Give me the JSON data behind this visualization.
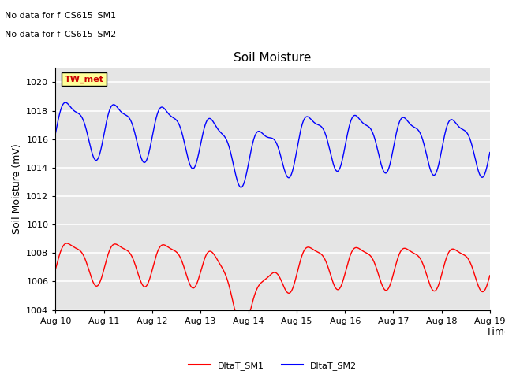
{
  "title": "Soil Moisture",
  "ylabel": "Soil Moisture (mV)",
  "xlabel": "Time",
  "annotation_lines": [
    "No data for f_CS615_SM1",
    "No data for f_CS615_SM2"
  ],
  "box_label": "TW_met",
  "box_color": "#cc0000",
  "box_bg": "#ffff99",
  "background_color": "#e5e5e5",
  "grid_color": "white",
  "ylim": [
    1004,
    1021
  ],
  "yticks": [
    1004,
    1006,
    1008,
    1010,
    1012,
    1014,
    1016,
    1018,
    1020
  ],
  "x_ticks_days": [
    10,
    11,
    12,
    13,
    14,
    15,
    16,
    17,
    18,
    19
  ],
  "line_color_sm1": "#ff0000",
  "line_color_sm2": "#0000ff",
  "legend_labels": [
    "DltaT_SM1",
    "DltaT_SM2"
  ],
  "title_fontsize": 11,
  "axis_fontsize": 9,
  "tick_fontsize": 8,
  "annot_fontsize": 8
}
